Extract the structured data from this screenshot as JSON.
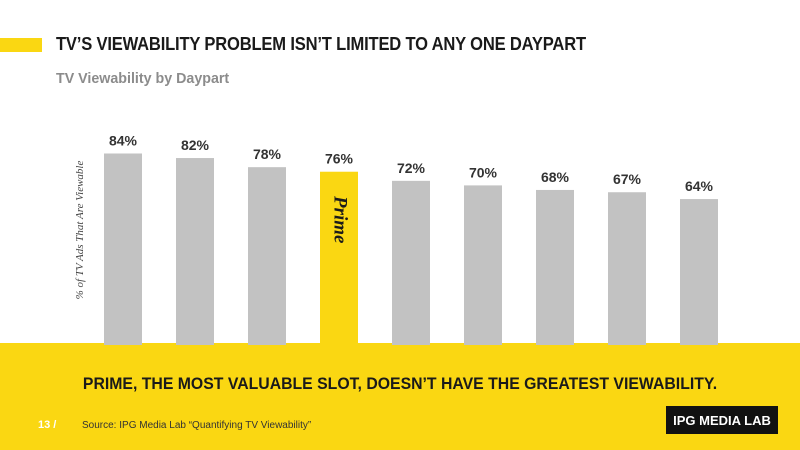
{
  "slide": {
    "title": "TV’S VIEWABILITY PROBLEM ISN’T LIMITED TO ANY ONE DAYPART",
    "subtitle": "TV Viewability by Daypart",
    "takeaway": "PRIME, THE MOST VALUABLE SLOT, DOESN’T HAVE THE GREATEST VIEWABILITY.",
    "page_number": "13 /",
    "source": "Source: IPG Media Lab “Quantifying TV Viewability”",
    "logo": "IPG MEDIA LAB"
  },
  "colors": {
    "accent": "#fad712",
    "bar_default": "#c2c2c2",
    "bar_highlight": "#fad712"
  },
  "chart_data": {
    "type": "bar",
    "title": "TV Viewability by Daypart",
    "ylabel": "% of TV Ads That Are Viewable",
    "values": [
      84,
      82,
      78,
      76,
      72,
      70,
      68,
      67,
      64
    ],
    "labels": [
      "84%",
      "82%",
      "78%",
      "76%",
      "72%",
      "70%",
      "68%",
      "67%",
      "64%"
    ],
    "highlight_index": 3,
    "highlight_label": "Prime",
    "grid": false,
    "legend": "none"
  }
}
